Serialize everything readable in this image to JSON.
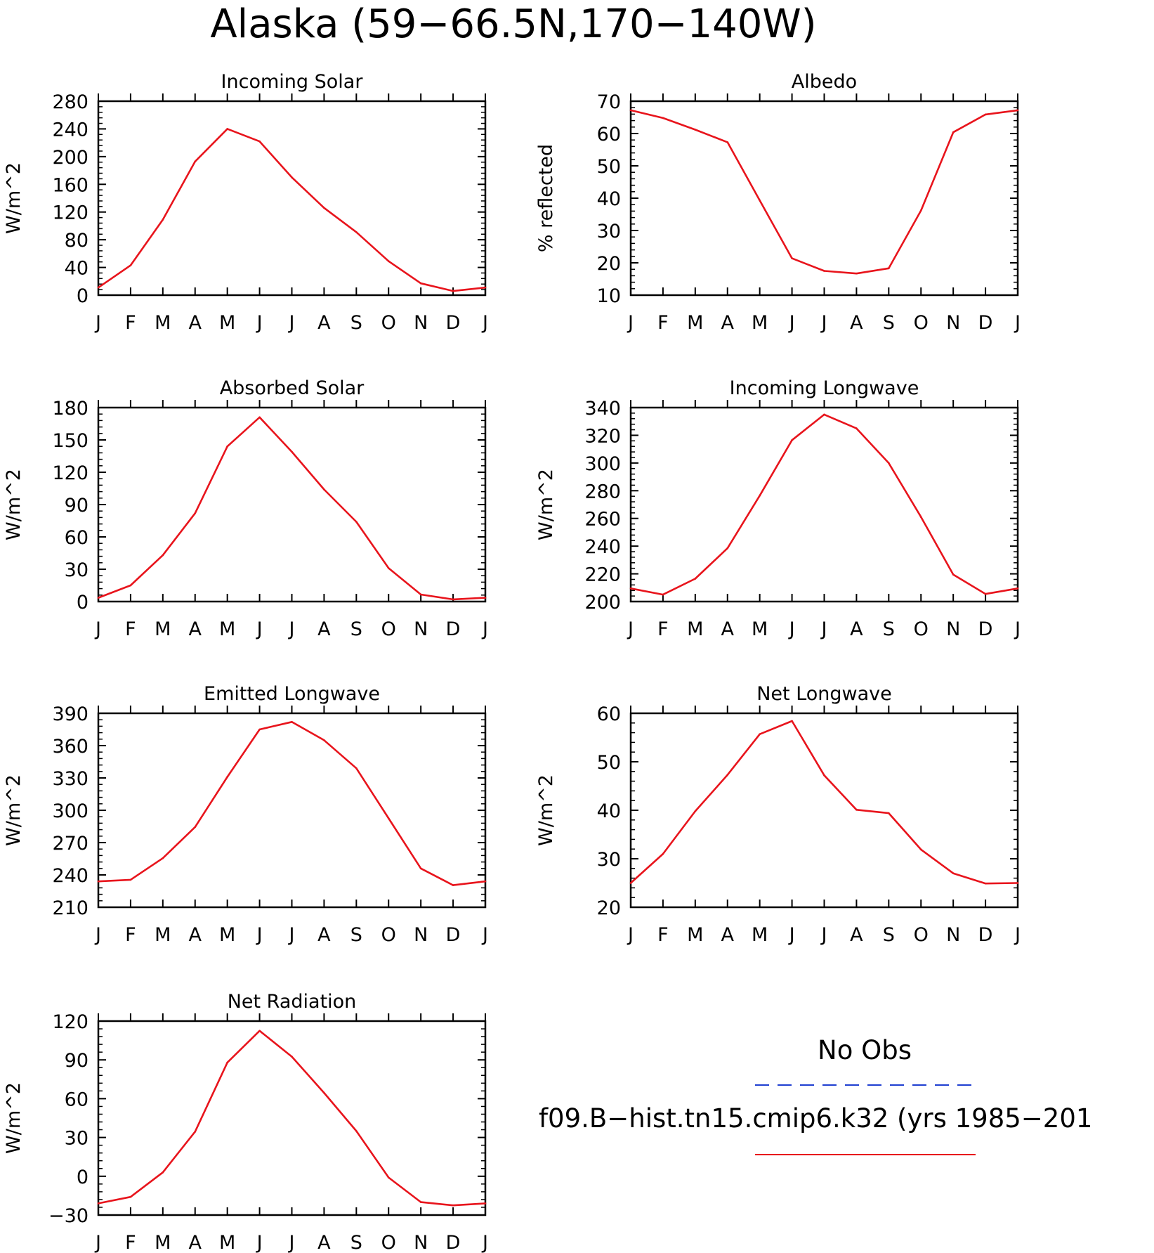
{
  "figure_title": "Alaska (59−66.5N,170−140W)",
  "legend": {
    "entries": [
      {
        "label": "No Obs",
        "color": "#1f3fd1",
        "dash": true
      },
      {
        "label": "f09.B−hist.tn15.cmip6.k32 (yrs 1985−201",
        "color": "#e8141c",
        "dash": false
      }
    ]
  },
  "colors": {
    "series": "#e8141c",
    "axis": "#000000"
  },
  "chart_data": [
    {
      "type": "line",
      "title": "Incoming Solar",
      "ylabel": "W/m^2",
      "xlabel": "",
      "categories": [
        "J",
        "F",
        "M",
        "A",
        "M",
        "J",
        "J",
        "A",
        "S",
        "O",
        "N",
        "D",
        "J"
      ],
      "ylim": [
        0,
        280
      ],
      "yticks": [
        "0",
        "40",
        "80",
        "120",
        "160",
        "200",
        "240",
        "280"
      ],
      "series": [
        {
          "values": [
            11,
            43,
            109,
            193,
            240,
            222,
            170,
            126,
            91,
            49,
            17,
            6,
            11
          ]
        }
      ]
    },
    {
      "type": "line",
      "title": "Albedo",
      "ylabel": "% reflected",
      "xlabel": "",
      "categories": [
        "J",
        "F",
        "M",
        "A",
        "M",
        "J",
        "J",
        "A",
        "S",
        "O",
        "N",
        "D",
        "J"
      ],
      "ylim": [
        10,
        70
      ],
      "yticks": [
        "10",
        "20",
        "30",
        "40",
        "50",
        "60",
        "70"
      ],
      "series": [
        {
          "values": [
            67.2,
            64.8,
            61.2,
            57.3,
            39.3,
            21.4,
            17.5,
            16.7,
            18.3,
            36.2,
            60.4,
            65.9,
            67.2
          ]
        }
      ]
    },
    {
      "type": "line",
      "title": "Absorbed Solar",
      "ylabel": "W/m^2",
      "xlabel": "",
      "categories": [
        "J",
        "F",
        "M",
        "A",
        "M",
        "J",
        "J",
        "A",
        "S",
        "O",
        "N",
        "D",
        "J"
      ],
      "ylim": [
        0,
        180
      ],
      "yticks": [
        "0",
        "30",
        "60",
        "90",
        "120",
        "150",
        "180"
      ],
      "series": [
        {
          "values": [
            3.5,
            15,
            43,
            82,
            144,
            171,
            139,
            104,
            74,
            31,
            6.5,
            2,
            3.5
          ]
        }
      ]
    },
    {
      "type": "line",
      "title": "Incoming Longwave",
      "ylabel": "W/m^2",
      "xlabel": "",
      "categories": [
        "J",
        "F",
        "M",
        "A",
        "M",
        "J",
        "J",
        "A",
        "S",
        "O",
        "N",
        "D",
        "J"
      ],
      "ylim": [
        200,
        340
      ],
      "yticks": [
        "200",
        "220",
        "240",
        "260",
        "280",
        "300",
        "320",
        "340"
      ],
      "series": [
        {
          "values": [
            209.5,
            205,
            216.5,
            238.5,
            276.5,
            316.5,
            335,
            325,
            300,
            261,
            219.5,
            205.5,
            209.5
          ]
        }
      ]
    },
    {
      "type": "line",
      "title": "Emitted Longwave",
      "ylabel": "W/m^2",
      "xlabel": "",
      "categories": [
        "J",
        "F",
        "M",
        "A",
        "M",
        "J",
        "J",
        "A",
        "S",
        "O",
        "N",
        "D",
        "J"
      ],
      "ylim": [
        210,
        390
      ],
      "yticks": [
        "210",
        "240",
        "270",
        "300",
        "330",
        "360",
        "390"
      ],
      "series": [
        {
          "values": [
            234,
            235.5,
            255.5,
            284.5,
            331,
            375,
            382,
            365,
            339,
            292.5,
            246,
            230.5,
            234
          ]
        }
      ]
    },
    {
      "type": "line",
      "title": "Net Longwave",
      "ylabel": "W/m^2",
      "xlabel": "",
      "categories": [
        "J",
        "F",
        "M",
        "A",
        "M",
        "J",
        "J",
        "A",
        "S",
        "O",
        "N",
        "D",
        "J"
      ],
      "ylim": [
        20,
        60
      ],
      "yticks": [
        "20",
        "30",
        "40",
        "50",
        "60"
      ],
      "series": [
        {
          "values": [
            25,
            31,
            39.8,
            47.3,
            55.7,
            58.4,
            47.2,
            40.1,
            39.4,
            31.9,
            27,
            24.9,
            25
          ]
        }
      ]
    },
    {
      "type": "line",
      "title": "Net Radiation",
      "ylabel": "W/m^2",
      "xlabel": "",
      "categories": [
        "J",
        "F",
        "M",
        "A",
        "M",
        "J",
        "J",
        "A",
        "S",
        "O",
        "N",
        "D",
        "J"
      ],
      "ylim": [
        -30,
        120
      ],
      "yticks": [
        "−30",
        "0",
        "30",
        "60",
        "90",
        "120"
      ],
      "series": [
        {
          "values": [
            -21,
            -16,
            3,
            34.5,
            88,
            112.5,
            92.5,
            64.5,
            35,
            -1,
            -20,
            -22.5,
            -21
          ]
        }
      ]
    }
  ]
}
